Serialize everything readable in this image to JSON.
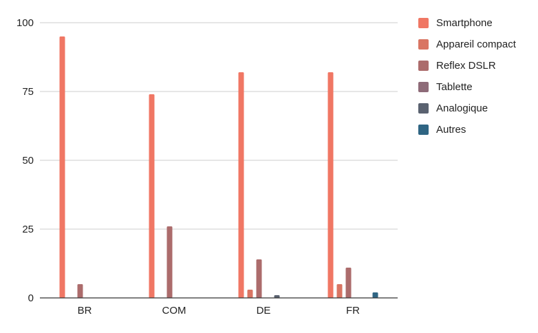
{
  "chart_data": {
    "type": "bar",
    "categories": [
      "BR",
      "COM",
      "DE",
      "FR"
    ],
    "series": [
      {
        "name": "Smartphone",
        "color": "#f07764",
        "values": [
          95,
          74,
          82,
          82
        ]
      },
      {
        "name": "Appareil compact",
        "color": "#d97563",
        "values": [
          0,
          0,
          3,
          5
        ]
      },
      {
        "name": "Reflex DSLR",
        "color": "#ac6c6c",
        "values": [
          5,
          26,
          14,
          11
        ]
      },
      {
        "name": "Tablette",
        "color": "#8e6b78",
        "values": [
          0,
          0,
          0,
          0
        ]
      },
      {
        "name": "Analogique",
        "color": "#5a6270",
        "values": [
          0,
          0,
          1,
          0
        ]
      },
      {
        "name": "Autres",
        "color": "#2f6583",
        "values": [
          0,
          0,
          0,
          2
        ]
      }
    ],
    "y_ticks": [
      "0",
      "25",
      "50",
      "75",
      "100"
    ],
    "ylim": [
      0,
      100
    ],
    "grid": true,
    "legend_position": "right",
    "title": "",
    "xlabel": "",
    "ylabel": ""
  }
}
